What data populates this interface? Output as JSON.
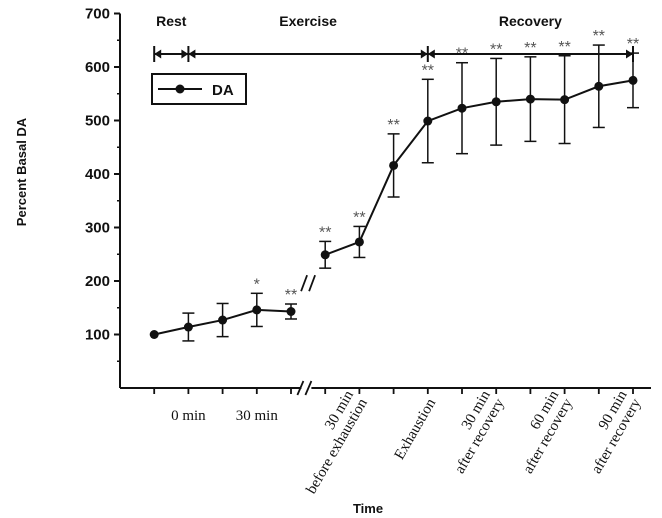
{
  "chart_data": {
    "type": "line",
    "xlabel": "Time",
    "ylabel": "Percent Basal DA",
    "ylim": [
      0,
      700
    ],
    "yticks": [
      100,
      200,
      300,
      400,
      500,
      600,
      700
    ],
    "phases": [
      {
        "label": "Rest",
        "start": 1,
        "end": 2
      },
      {
        "label": "Exercise",
        "start": 2,
        "end": 9
      },
      {
        "label": "Recovery",
        "start": 9,
        "end": 15
      }
    ],
    "x_tick_labels": [
      {
        "x": 2,
        "lines": [
          "0 min"
        ]
      },
      {
        "x": 4,
        "lines": [
          "30 min"
        ]
      },
      {
        "x": 7,
        "lines": [
          "30 min",
          "before exhaustion"
        ]
      },
      {
        "x": 9,
        "lines": [
          "Exhaustion"
        ]
      },
      {
        "x": 11,
        "lines": [
          "30 min",
          "after recovery"
        ]
      },
      {
        "x": 13,
        "lines": [
          "60 min",
          "after recovery"
        ]
      },
      {
        "x": 15,
        "lines": [
          "90 min",
          "after recovery"
        ]
      }
    ],
    "axis_break_after_x": 5,
    "series": [
      {
        "name": "DA",
        "color": "#111111",
        "x": [
          1,
          2,
          3,
          4,
          5,
          6,
          7,
          8,
          9,
          10,
          11,
          12,
          13,
          14,
          15
        ],
        "y": [
          100,
          114,
          127,
          146,
          143,
          249,
          273,
          416,
          499,
          523,
          535,
          540,
          539,
          564,
          575
        ],
        "error": [
          0,
          26,
          31,
          31,
          14,
          25,
          29,
          59,
          78,
          85,
          81,
          79,
          82,
          77,
          51
        ],
        "significance": [
          "",
          "",
          "",
          "*",
          "**",
          "**",
          "**",
          "**",
          "**",
          "**",
          "**",
          "**",
          "**",
          "**",
          "**"
        ]
      }
    ],
    "legend": {
      "position": "top-left",
      "entries": [
        "DA"
      ]
    }
  }
}
